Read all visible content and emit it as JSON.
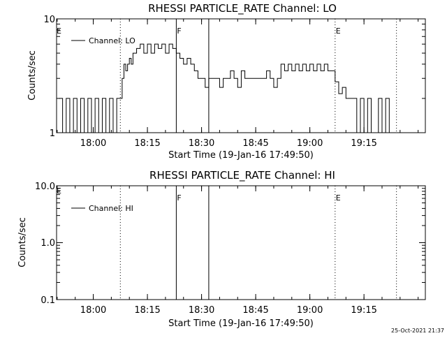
{
  "stamp": "25-Oct-2021 21:37",
  "chart_data": [
    {
      "type": "line",
      "title": "RHESSI PARTICLE_RATE Channel: LO",
      "xlabel": "Start Time (19-Jan-16 17:49:50)",
      "ylabel": "Counts/sec",
      "yscale": "log",
      "ylim": [
        1,
        10
      ],
      "xlim": [
        "17:49:50",
        "19:32:00"
      ],
      "xticks": [
        "18:00",
        "18:15",
        "18:30",
        "18:45",
        "19:00",
        "19:15"
      ],
      "yticks": [
        "1",
        "10"
      ],
      "legend": "Channel: LO",
      "legend_position": "top-left",
      "markers": [
        {
          "time": "18:07:30",
          "label": "",
          "style": "dotted"
        },
        {
          "time": "18:23:00",
          "label": "F",
          "style": "solid"
        },
        {
          "time": "18:32:00",
          "label": "",
          "style": "solid"
        },
        {
          "time": "19:07:00",
          "label": "E",
          "style": "dotted"
        },
        {
          "time": "19:24:00",
          "label": "",
          "style": "dotted"
        }
      ],
      "edge_label": "E",
      "series": [
        {
          "name": "Channel: LO",
          "x": [
            "17:50:30",
            "17:51:30",
            "17:52:30",
            "17:53:30",
            "17:54:30",
            "17:55:30",
            "17:56:30",
            "17:57:30",
            "17:58:30",
            "17:59:30",
            "18:00:30",
            "18:01:30",
            "18:02:30",
            "18:03:30",
            "18:04:30",
            "18:05:30",
            "18:06:30",
            "18:07:30",
            "18:08:00",
            "18:08:30",
            "18:09:00",
            "18:09:30",
            "18:10:00",
            "18:10:30",
            "18:11:00",
            "18:12:00",
            "18:13:00",
            "18:14:00",
            "18:15:00",
            "18:16:00",
            "18:17:00",
            "18:18:00",
            "18:19:00",
            "18:20:00",
            "18:21:00",
            "18:22:00",
            "18:23:00",
            "18:24:00",
            "18:25:00",
            "18:26:00",
            "18:27:00",
            "18:28:00",
            "18:29:00",
            "18:30:00",
            "18:31:00",
            "18:32:00",
            "18:33:00",
            "18:34:00",
            "18:35:00",
            "18:36:00",
            "18:37:00",
            "18:38:00",
            "18:39:00",
            "18:40:00",
            "18:41:00",
            "18:42:00",
            "18:43:00",
            "18:44:00",
            "18:45:00",
            "18:46:00",
            "18:47:00",
            "18:48:00",
            "18:49:00",
            "18:50:00",
            "18:51:00",
            "18:52:00",
            "18:53:00",
            "18:54:00",
            "18:55:00",
            "18:56:00",
            "18:57:00",
            "18:58:00",
            "18:59:00",
            "19:00:00",
            "19:01:00",
            "19:02:00",
            "19:03:00",
            "19:04:00",
            "19:05:00",
            "19:06:00",
            "19:07:00",
            "19:08:00",
            "19:09:00",
            "19:10:00",
            "19:11:00",
            "19:12:00",
            "19:13:00",
            "19:14:00",
            "19:15:00",
            "19:16:00",
            "19:17:00",
            "19:18:00",
            "19:19:00",
            "19:20:00",
            "19:21:00",
            "19:22:00"
          ],
          "y": [
            2,
            1,
            2,
            1,
            2,
            1,
            2,
            1,
            2,
            1,
            2,
            1,
            2,
            1,
            2,
            1,
            2,
            2,
            3,
            4,
            3.5,
            4,
            4.5,
            4,
            5,
            5.5,
            6,
            5,
            6,
            5,
            6,
            5.5,
            6,
            5,
            6,
            5.5,
            5,
            4.5,
            4,
            4.5,
            4,
            3.5,
            3,
            3,
            2.5,
            3,
            3,
            3,
            2.5,
            3,
            3,
            3.5,
            3,
            2.5,
            3.5,
            3,
            3,
            3,
            3,
            3,
            3,
            3.5,
            3,
            2.5,
            3,
            4,
            3.5,
            4,
            3.5,
            4,
            3.5,
            4,
            3.5,
            4,
            3.5,
            4,
            3.5,
            4,
            3.5,
            3.5,
            2.8,
            2.2,
            2.5,
            2,
            2,
            2,
            1,
            2,
            1,
            2,
            1,
            1,
            2,
            1,
            2,
            1
          ]
        }
      ]
    },
    {
      "type": "line",
      "title": "RHESSI PARTICLE_RATE Channel: HI",
      "xlabel": "Start Time (19-Jan-16 17:49:50)",
      "ylabel": "Counts/sec",
      "yscale": "log",
      "ylim": [
        0.1,
        10
      ],
      "xlim": [
        "17:49:50",
        "19:32:00"
      ],
      "xticks": [
        "18:00",
        "18:15",
        "18:30",
        "18:45",
        "19:00",
        "19:15"
      ],
      "yticks": [
        "0.1",
        "1.0",
        "10.0"
      ],
      "legend": "Channel: HI",
      "legend_position": "top-left",
      "markers": [
        {
          "time": "18:07:30",
          "label": "",
          "style": "dotted"
        },
        {
          "time": "18:23:00",
          "label": "F",
          "style": "solid"
        },
        {
          "time": "18:32:00",
          "label": "",
          "style": "solid"
        },
        {
          "time": "19:07:00",
          "label": "E",
          "style": "dotted"
        },
        {
          "time": "19:24:00",
          "label": "",
          "style": "dotted"
        }
      ],
      "edge_label": "E",
      "series": []
    }
  ]
}
